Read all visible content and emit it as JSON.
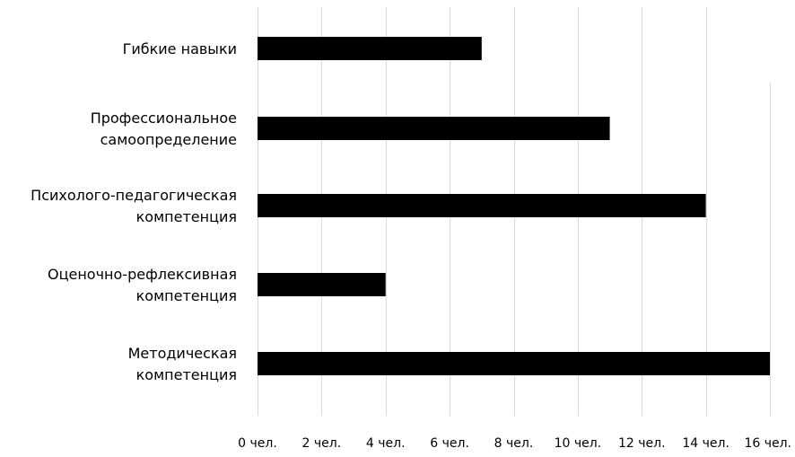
{
  "chart_data": {
    "type": "bar",
    "orientation": "horizontal",
    "categories": [
      [
        "Гибкие навыки"
      ],
      [
        "Профессиональное",
        "самоопределение"
      ],
      [
        "Психолого-педагогическая",
        "компетенция"
      ],
      [
        "Оценочно-рефлексивная",
        "компетенция"
      ],
      [
        "Методическая",
        "компетенция"
      ]
    ],
    "values": [
      7,
      11,
      14,
      4,
      16
    ],
    "xlim": [
      0,
      16
    ],
    "x_ticks": [
      0,
      2,
      4,
      6,
      8,
      10,
      12,
      14,
      16
    ],
    "x_tick_labels": [
      "0 чел.",
      "2 чел.",
      "4 чел.",
      "6 чел.",
      "8 чел.",
      "10 чел.",
      "12 чел.",
      "14 чел.",
      "16 чел."
    ],
    "grid": "vertical",
    "legend": "none",
    "bar_color": "#000000",
    "grid_color": "#d9d9d9"
  }
}
